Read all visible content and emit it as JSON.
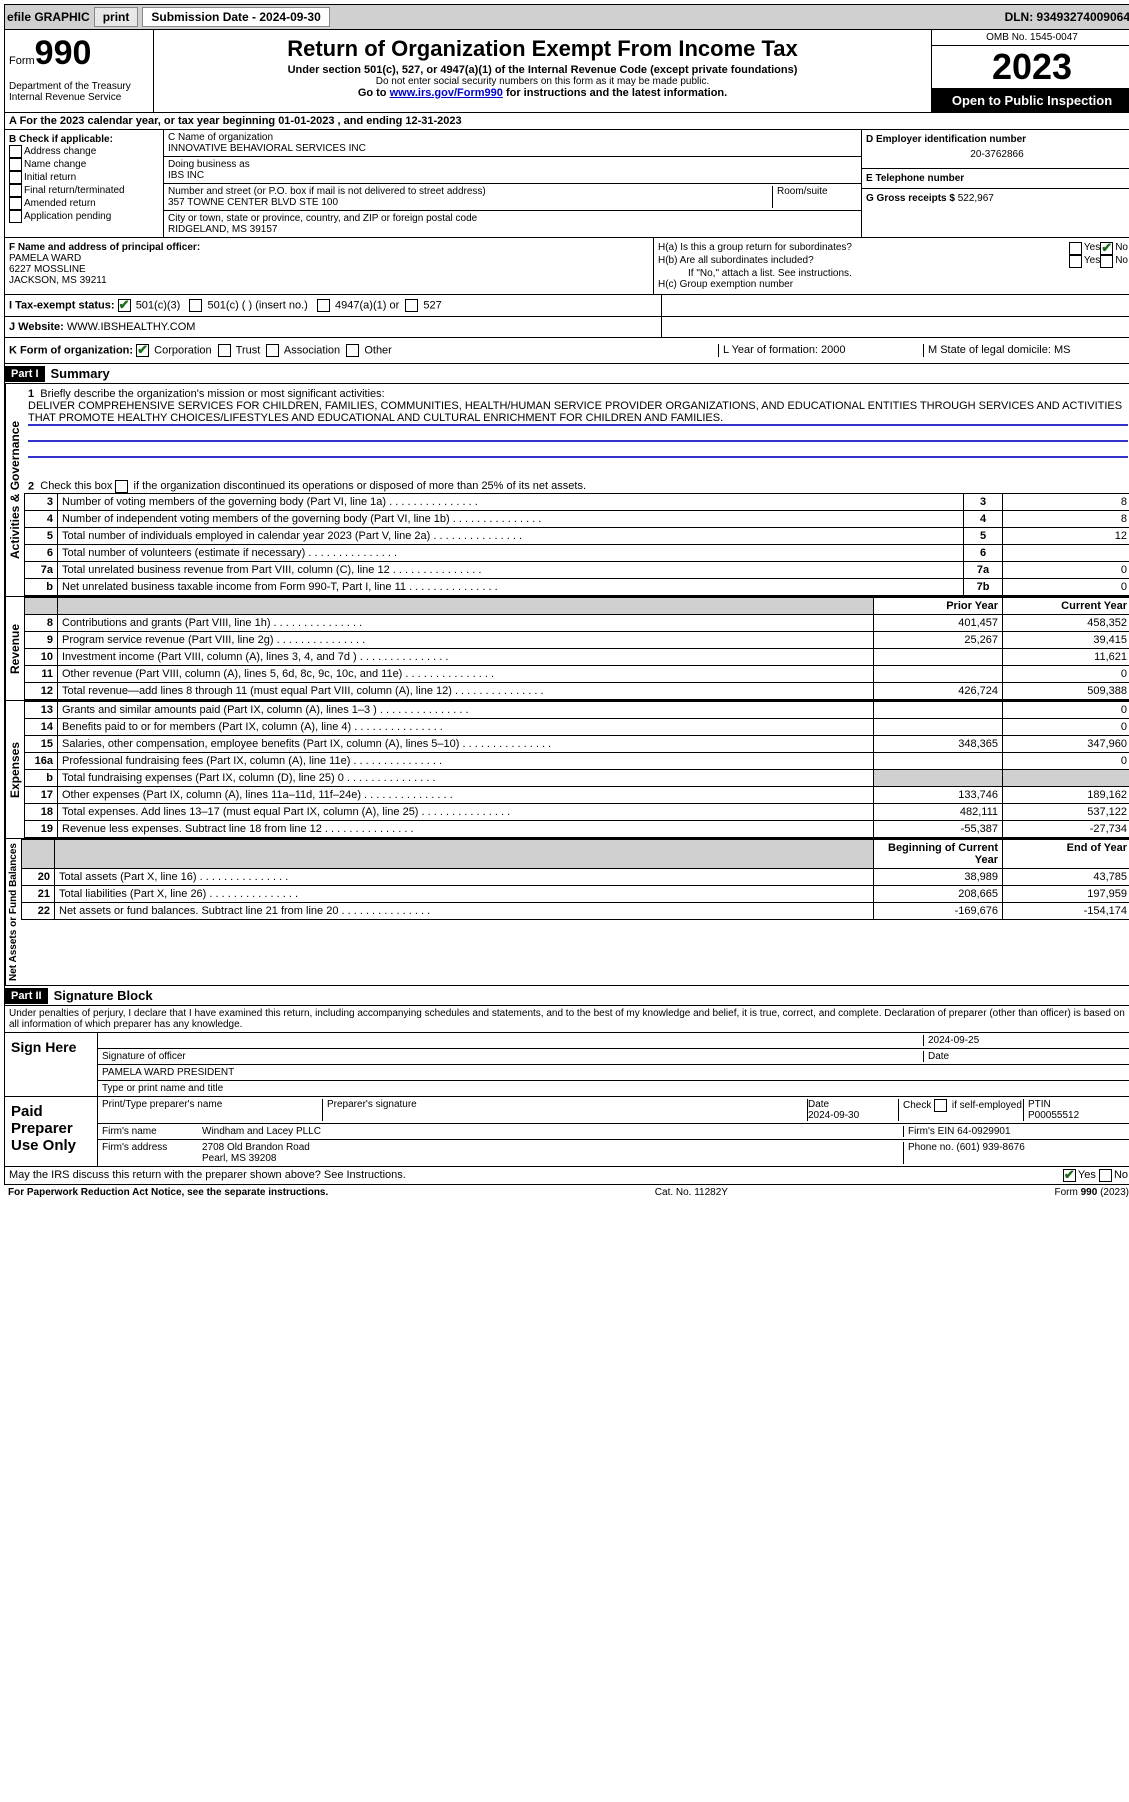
{
  "topbar": {
    "efile": "efile GRAPHIC",
    "print": "print",
    "sub_label": "Submission Date - 2024-09-30",
    "dln": "DLN: 93493274009064"
  },
  "header": {
    "form_prefix": "Form",
    "form_no": "990",
    "dept": "Department of the Treasury\nInternal Revenue Service",
    "title": "Return of Organization Exempt From Income Tax",
    "subtitle": "Under section 501(c), 527, or 4947(a)(1) of the Internal Revenue Code (except private foundations)",
    "warn": "Do not enter social security numbers on this form as it may be made public.",
    "goto": "Go to ",
    "goto_link": "www.irs.gov/Form990",
    "goto_tail": " for instructions and the latest information.",
    "omb": "OMB No. 1545-0047",
    "year": "2023",
    "inspect": "Open to Public Inspection"
  },
  "period": "A For the 2023 calendar year, or tax year beginning 01-01-2023   , and ending 12-31-2023",
  "box_b": {
    "label": "B Check if applicable:",
    "items": [
      "Address change",
      "Name change",
      "Initial return",
      "Final return/terminated",
      "Amended return",
      "Application pending"
    ]
  },
  "box_c": {
    "name_label": "C Name of organization",
    "name": "INNOVATIVE BEHAVIORAL SERVICES INC",
    "dba_label": "Doing business as",
    "dba": "IBS INC",
    "addr_label": "Number and street (or P.O. box if mail is not delivered to street address)",
    "room": "Room/suite",
    "addr": "357 TOWNE CENTER BLVD STE 100",
    "city_label": "City or town, state or province, country, and ZIP or foreign postal code",
    "city": "RIDGELAND, MS  39157"
  },
  "box_d": {
    "label": "D Employer identification number",
    "val": "20-3762866"
  },
  "box_e": {
    "label": "E Telephone number",
    "val": ""
  },
  "box_g": {
    "label": "G Gross receipts $",
    "val": "522,967"
  },
  "box_f": {
    "label": "F  Name and address of principal officer:",
    "name": "PAMELA WARD",
    "addr1": "6227 MOSSLINE",
    "addr2": "JACKSON, MS  39211"
  },
  "box_h": {
    "ha": "H(a)  Is this a group return for subordinates?",
    "hb": "H(b)  Are all subordinates included?",
    "hb_note": "If \"No,\" attach a list. See instructions.",
    "hc": "H(c)  Group exemption number",
    "yes": "Yes",
    "no": "No"
  },
  "row_i": {
    "label": "I    Tax-exempt status:",
    "opts": [
      "501(c)(3)",
      "501(c) (  ) (insert no.)",
      "4947(a)(1) or",
      "527"
    ]
  },
  "row_j": {
    "label": "J    Website:",
    "val": "WWW.IBSHEALTHY.COM"
  },
  "row_k": {
    "label": "K Form of organization:",
    "opts": [
      "Corporation",
      "Trust",
      "Association",
      "Other"
    ],
    "l": "L Year of formation: 2000",
    "m": "M State of legal domicile: MS"
  },
  "part1": {
    "header": "Part I",
    "title": "Summary",
    "q1_label": "1",
    "q1": "Briefly describe the organization's mission or most significant activities:",
    "mission": "DELIVER COMPREHENSIVE SERVICES FOR CHILDREN, FAMILIES, COMMUNITIES, HEALTH/HUMAN SERVICE PROVIDER ORGANIZATIONS, AND EDUCATIONAL ENTITIES THROUGH SERVICES AND ACTIVITIES THAT PROMOTE HEALTHY CHOICES/LIFESTYLES AND EDUCATIONAL AND CULTURAL ENRICHMENT FOR CHILDREN AND FAMILIES.",
    "q2": "Check this box      if the organization discontinued its operations or disposed of more than 25% of its net assets.",
    "side_gov": "Activities & Governance",
    "side_rev": "Revenue",
    "side_exp": "Expenses",
    "side_net": "Net Assets or Fund Balances",
    "rows_gov": [
      {
        "n": "3",
        "d": "Number of voting members of the governing body (Part VI, line 1a)",
        "l": "3",
        "v": "8"
      },
      {
        "n": "4",
        "d": "Number of independent voting members of the governing body (Part VI, line 1b)",
        "l": "4",
        "v": "8"
      },
      {
        "n": "5",
        "d": "Total number of individuals employed in calendar year 2023 (Part V, line 2a)",
        "l": "5",
        "v": "12"
      },
      {
        "n": "6",
        "d": "Total number of volunteers (estimate if necessary)",
        "l": "6",
        "v": ""
      },
      {
        "n": "7a",
        "d": "Total unrelated business revenue from Part VIII, column (C), line 12",
        "l": "7a",
        "v": "0"
      },
      {
        "n": "b",
        "d": "Net unrelated business taxable income from Form 990-T, Part I, line 11",
        "l": "7b",
        "v": "0"
      }
    ],
    "col_prior": "Prior Year",
    "col_curr": "Current Year",
    "rows_rev": [
      {
        "n": "8",
        "d": "Contributions and grants (Part VIII, line 1h)",
        "p": "401,457",
        "c": "458,352"
      },
      {
        "n": "9",
        "d": "Program service revenue (Part VIII, line 2g)",
        "p": "25,267",
        "c": "39,415"
      },
      {
        "n": "10",
        "d": "Investment income (Part VIII, column (A), lines 3, 4, and 7d )",
        "p": "",
        "c": "11,621"
      },
      {
        "n": "11",
        "d": "Other revenue (Part VIII, column (A), lines 5, 6d, 8c, 9c, 10c, and 11e)",
        "p": "",
        "c": "0"
      },
      {
        "n": "12",
        "d": "Total revenue—add lines 8 through 11 (must equal Part VIII, column (A), line 12)",
        "p": "426,724",
        "c": "509,388"
      }
    ],
    "rows_exp": [
      {
        "n": "13",
        "d": "Grants and similar amounts paid (Part IX, column (A), lines 1–3 )",
        "p": "",
        "c": "0"
      },
      {
        "n": "14",
        "d": "Benefits paid to or for members (Part IX, column (A), line 4)",
        "p": "",
        "c": "0"
      },
      {
        "n": "15",
        "d": "Salaries, other compensation, employee benefits (Part IX, column (A), lines 5–10)",
        "p": "348,365",
        "c": "347,960"
      },
      {
        "n": "16a",
        "d": "Professional fundraising fees (Part IX, column (A), line 11e)",
        "p": "",
        "c": "0"
      },
      {
        "n": "b",
        "d": "Total fundraising expenses (Part IX, column (D), line 25) 0",
        "p": "shade",
        "c": "shade"
      },
      {
        "n": "17",
        "d": "Other expenses (Part IX, column (A), lines 11a–11d, 11f–24e)",
        "p": "133,746",
        "c": "189,162"
      },
      {
        "n": "18",
        "d": "Total expenses. Add lines 13–17 (must equal Part IX, column (A), line 25)",
        "p": "482,111",
        "c": "537,122"
      },
      {
        "n": "19",
        "d": "Revenue less expenses. Subtract line 18 from line 12",
        "p": "-55,387",
        "c": "-27,734"
      }
    ],
    "col_beg": "Beginning of Current Year",
    "col_end": "End of Year",
    "rows_net": [
      {
        "n": "20",
        "d": "Total assets (Part X, line 16)",
        "p": "38,989",
        "c": "43,785"
      },
      {
        "n": "21",
        "d": "Total liabilities (Part X, line 26)",
        "p": "208,665",
        "c": "197,959"
      },
      {
        "n": "22",
        "d": "Net assets or fund balances. Subtract line 21 from line 20",
        "p": "-169,676",
        "c": "-154,174"
      }
    ]
  },
  "part2": {
    "header": "Part II",
    "title": "Signature Block",
    "perjury": "Under penalties of perjury, I declare that I have examined this return, including accompanying schedules and statements, and to the best of my knowledge and belief, it is true, correct, and complete. Declaration of preparer (other than officer) is based on all information of which preparer has any knowledge.",
    "sign_here": "Sign Here",
    "sig_officer": "Signature of officer",
    "sig_name": "PAMELA WARD PRESIDENT",
    "sig_type": "Type or print name and title",
    "sig_date_lbl": "Date",
    "sig_date": "2024-09-25",
    "paid": "Paid Preparer Use Only",
    "prep_name_lbl": "Print/Type preparer's name",
    "prep_sig_lbl": "Preparer's signature",
    "prep_date_lbl": "Date",
    "prep_date": "2024-09-30",
    "check_self": "Check       if self-employed",
    "ptin_lbl": "PTIN",
    "ptin": "P00055512",
    "firm_name_lbl": "Firm's name",
    "firm_name": "Windham and Lacey PLLC",
    "firm_ein_lbl": "Firm's EIN",
    "firm_ein": "64-0929901",
    "firm_addr_lbl": "Firm's address",
    "firm_addr": "2708 Old Brandon Road\nPearl, MS  39208",
    "phone_lbl": "Phone no.",
    "phone": "(601) 939-8676",
    "discuss": "May the IRS discuss this return with the preparer shown above? See Instructions.",
    "yes": "Yes",
    "no": "No"
  },
  "footer": {
    "left": "For Paperwork Reduction Act Notice, see the separate instructions.",
    "mid": "Cat. No. 11282Y",
    "right": "Form 990 (2023)"
  }
}
